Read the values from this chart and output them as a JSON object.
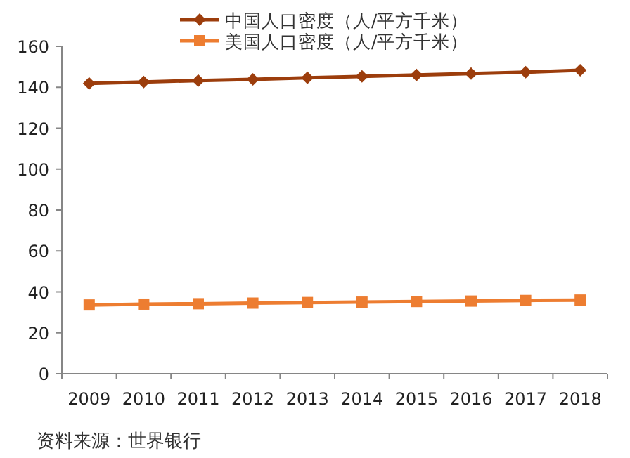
{
  "chart_data": {
    "type": "line",
    "categories": [
      "2009",
      "2010",
      "2011",
      "2012",
      "2013",
      "2014",
      "2015",
      "2016",
      "2017",
      "2018"
    ],
    "series": [
      {
        "name": "中国人口密度（人/平方千米）",
        "color": "#9c3d0c",
        "marker": "diamond",
        "values": [
          141.9,
          142.6,
          143.3,
          143.9,
          144.6,
          145.3,
          146.0,
          146.7,
          147.4,
          148.3
        ]
      },
      {
        "name": "美国人口密度（人/平方千米）",
        "color": "#ed7d31",
        "marker": "square",
        "values": [
          33.6,
          34.0,
          34.2,
          34.5,
          34.8,
          35.0,
          35.3,
          35.5,
          35.8,
          36.0
        ]
      }
    ],
    "ylim": [
      0,
      160
    ],
    "yticks": [
      0,
      20,
      40,
      60,
      80,
      100,
      120,
      140,
      160
    ],
    "grid": false,
    "legend": "top",
    "annotations": [
      "资料来源：世界银行"
    ]
  }
}
